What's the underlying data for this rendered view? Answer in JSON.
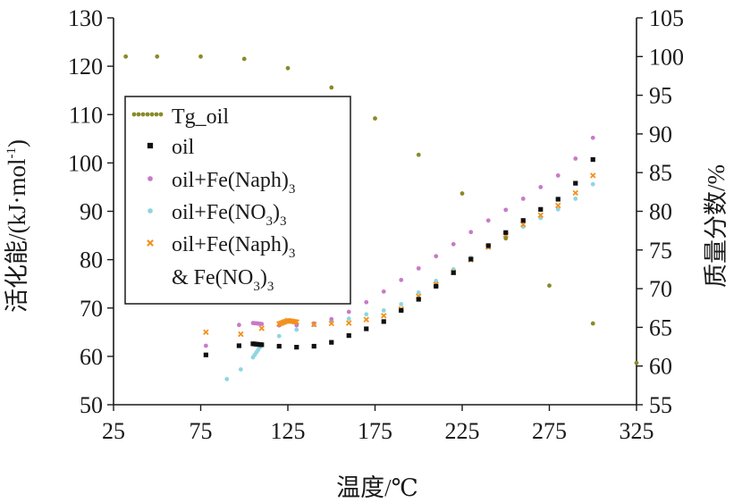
{
  "chart_data": {
    "type": "scatter",
    "xlabel": "温度/℃",
    "ylabel_left": "活化能/(kJ·mol-1)",
    "ylabel_left_parts": {
      "main": "活化能/(kJ·mol",
      "sup": "-1",
      "close": ")"
    },
    "ylabel_right": "质量分数/%",
    "xlim": [
      25,
      325
    ],
    "ylim_left": [
      50,
      130
    ],
    "ylim_right": [
      55,
      105
    ],
    "x_ticks": [
      "25",
      "75",
      "125",
      "175",
      "225",
      "275",
      "325"
    ],
    "y_left_ticks": [
      "50",
      "60",
      "70",
      "80",
      "90",
      "100",
      "110",
      "120",
      "130"
    ],
    "y_right_ticks": [
      "55",
      "60",
      "65",
      "70",
      "75",
      "80",
      "85",
      "90",
      "95",
      "100",
      "105"
    ],
    "grid": false,
    "legend_position": "upper-left",
    "series": [
      {
        "name": "Tg_oil",
        "axis": "right",
        "color": "#8a8a2a",
        "marker": "dot",
        "x": [
          32,
          50,
          75,
          100,
          125,
          150,
          175,
          200,
          225,
          250,
          275,
          300,
          325
        ],
        "y": [
          100,
          100,
          100,
          99.7,
          98.5,
          96,
          92,
          87.3,
          82.3,
          76.5,
          70.4,
          65.5,
          60.4
        ]
      },
      {
        "name": "oil",
        "axis": "left",
        "color": "#111111",
        "marker": "square",
        "x": [
          78,
          97,
          105,
          110,
          120,
          130,
          140,
          150,
          160,
          170,
          180,
          190,
          200,
          210,
          220,
          230,
          240,
          250,
          260,
          270,
          280,
          290,
          300
        ],
        "y": [
          60.3,
          62.2,
          62.6,
          62.4,
          62.1,
          61.9,
          62.1,
          62.9,
          64.3,
          65.7,
          67.2,
          69.5,
          71.8,
          74.5,
          77.3,
          80.1,
          82.9,
          85.6,
          88.1,
          90.4,
          92.5,
          95.8,
          100.7
        ]
      },
      {
        "name": "oil+Fe(Naph)3",
        "axis": "left",
        "color": "#c87ac8",
        "marker": "dot",
        "x": [
          78,
          97,
          105,
          110,
          120,
          130,
          140,
          150,
          160,
          170,
          180,
          190,
          200,
          210,
          220,
          230,
          240,
          250,
          260,
          270,
          280,
          290,
          300
        ],
        "y": [
          62.2,
          66.5,
          66.9,
          66.7,
          66.4,
          66.4,
          66.8,
          67.7,
          69.2,
          71.2,
          73.4,
          75.8,
          78.2,
          80.7,
          83.2,
          85.7,
          88.1,
          90.3,
          92.6,
          95.0,
          97.4,
          100.9,
          105.2
        ]
      },
      {
        "name": "oil+Fe(NO3)3",
        "axis": "left",
        "color": "#8fd6df",
        "marker": "dot",
        "x": [
          90,
          98,
          105,
          110,
          120,
          130,
          140,
          150,
          160,
          170,
          180,
          190,
          200,
          210,
          220,
          230,
          240,
          250,
          260,
          270,
          280,
          290,
          300
        ],
        "y": [
          55.3,
          57.3,
          59.8,
          62.4,
          64.2,
          65.5,
          66.5,
          67.2,
          67.8,
          68.7,
          69.5,
          70.8,
          73.2,
          75.6,
          78.0,
          80.4,
          82.6,
          84.8,
          86.8,
          88.6,
          90.4,
          92.6,
          95.6
        ]
      },
      {
        "name": "oil+Fe(Naph)3 & Fe(NO3)3",
        "axis": "left",
        "color": "#f2901c",
        "marker": "cross",
        "x": [
          78,
          98,
          110,
          120,
          125,
          130,
          140,
          150,
          160,
          170,
          180,
          190,
          200,
          210,
          220,
          230,
          240,
          250,
          260,
          270,
          280,
          290,
          300
        ],
        "y": [
          65.0,
          64.6,
          65.8,
          66.7,
          67.4,
          67.1,
          66.6,
          66.8,
          66.9,
          67.6,
          68.4,
          69.8,
          72.4,
          74.9,
          77.4,
          80.0,
          82.6,
          85.1,
          87.3,
          89.2,
          91.2,
          93.8,
          97.4
        ]
      }
    ]
  },
  "legend": {
    "items": [
      {
        "main": "Tg_oil",
        "sub": ""
      },
      {
        "main": "oil",
        "sub": ""
      },
      {
        "main": "oil+Fe(Naph)",
        "sub": "3"
      },
      {
        "main": "oil+Fe(NO",
        "sub": "3",
        "after": ")",
        "sub2": "3"
      },
      {
        "main": "oil+Fe(Naph)",
        "sub": "3"
      },
      {
        "main": "& Fe(NO",
        "sub": "3",
        "after": ")",
        "sub2": "3"
      }
    ]
  }
}
